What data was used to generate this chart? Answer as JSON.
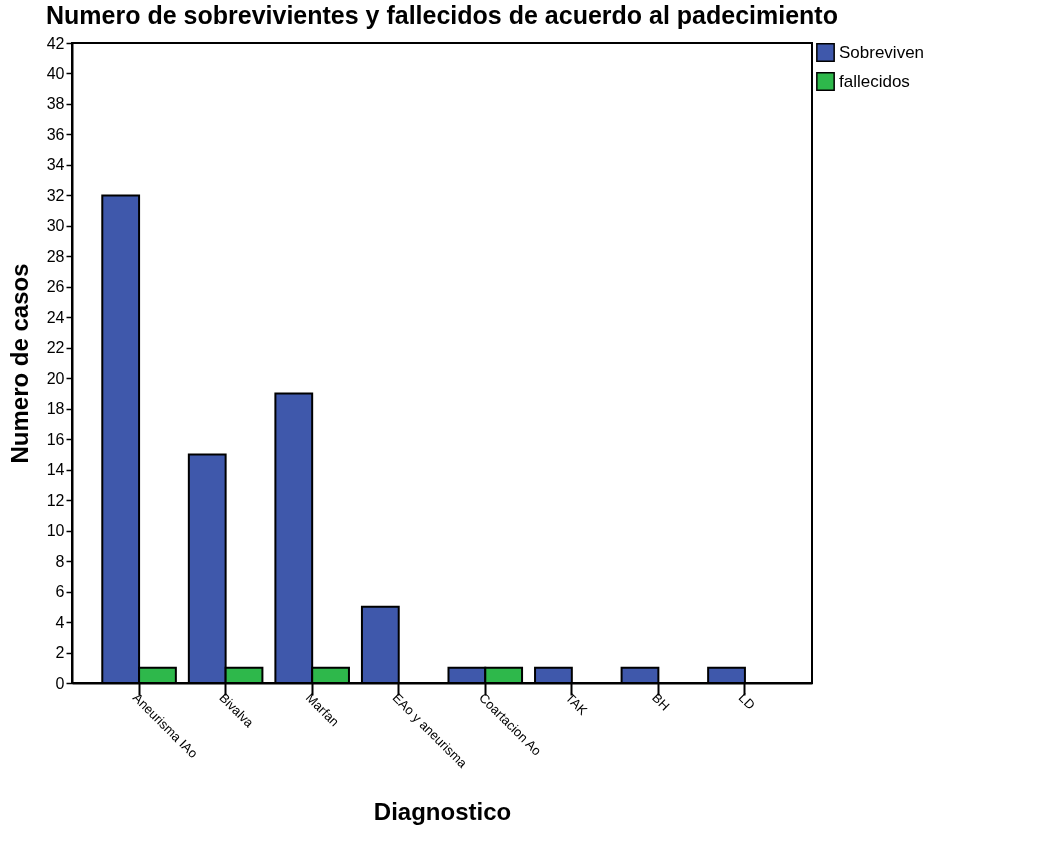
{
  "chart_data": {
    "type": "bar",
    "title": "Numero de sobrevivientes y fallecidos de acuerdo al padecimiento",
    "xlabel": "Diagnostico",
    "ylabel": "Numero de casos",
    "categories": [
      "Aneurisma IAo",
      "Bivalva",
      "Marfan",
      "EAo y aneurisma",
      "Coartacion Ao",
      "TAK",
      "BH",
      "LD"
    ],
    "series": [
      {
        "name": "Sobreviven",
        "color": "#3f58ab",
        "values": [
          32,
          15,
          19,
          5,
          1,
          1,
          1,
          1
        ]
      },
      {
        "name": "fallecidos",
        "color": "#2eb84b",
        "values": [
          1,
          1,
          1,
          null,
          1,
          null,
          null,
          null
        ]
      }
    ],
    "ylim": [
      0,
      42
    ],
    "yticks": [
      0,
      2,
      4,
      6,
      8,
      10,
      12,
      14,
      16,
      18,
      20,
      22,
      24,
      26,
      28,
      30,
      32,
      34,
      36,
      38,
      40,
      42
    ],
    "grid": false,
    "legend": "top right"
  }
}
